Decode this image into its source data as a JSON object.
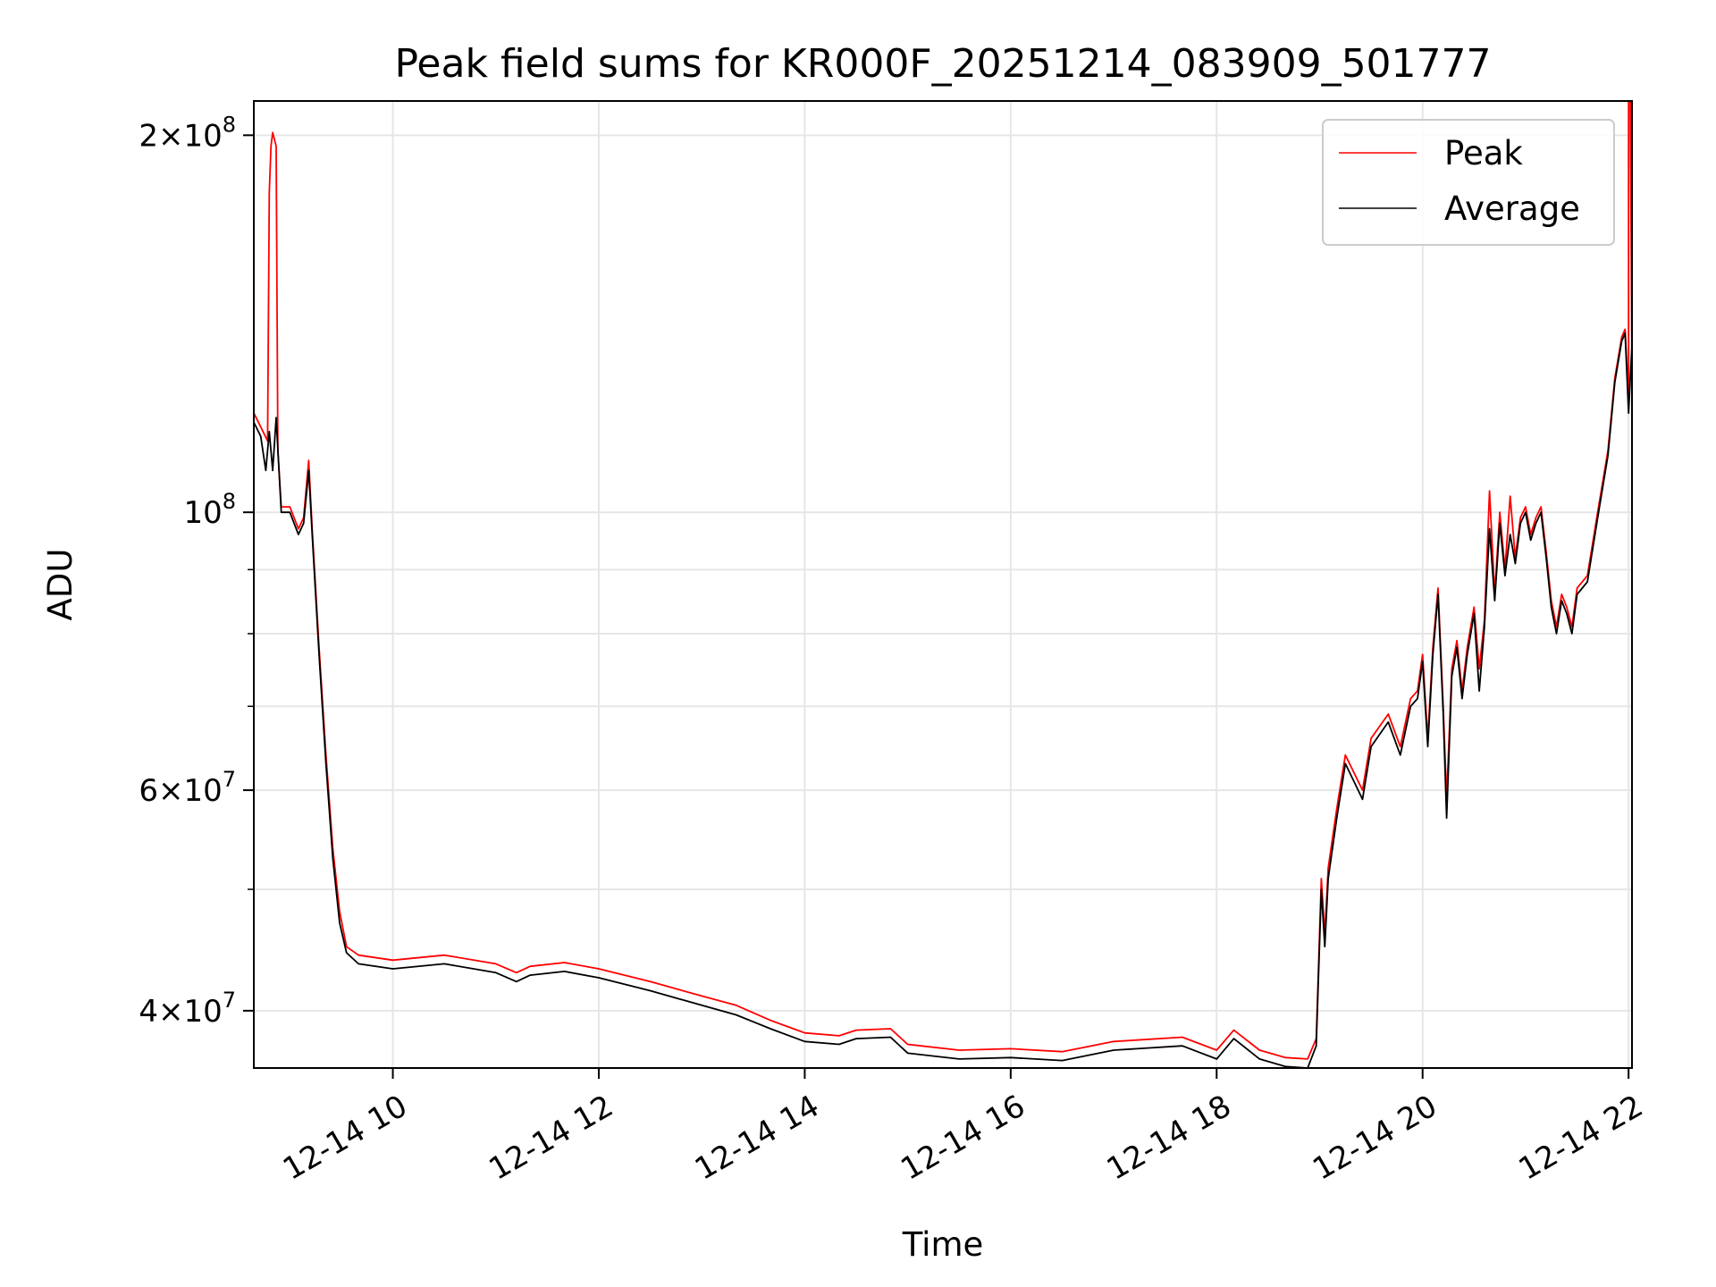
{
  "chart_data": {
    "type": "line",
    "title": "Peak field sums for KR000F_20251214_083909_501777",
    "xlabel": "Time",
    "ylabel": "ADU",
    "yscale": "log",
    "grid": true,
    "legend_position": "top-right",
    "xlim": [
      "2025-12-14 08:39",
      "2025-12-14 22:02"
    ],
    "ylim": [
      36000000,
      213000000
    ],
    "x_ticks": [
      {
        "value": "2025-12-14 10:00",
        "label": "12-14 10"
      },
      {
        "value": "2025-12-14 12:00",
        "label": "12-14 12"
      },
      {
        "value": "2025-12-14 14:00",
        "label": "12-14 14"
      },
      {
        "value": "2025-12-14 16:00",
        "label": "12-14 16"
      },
      {
        "value": "2025-12-14 18:00",
        "label": "12-14 18"
      },
      {
        "value": "2025-12-14 20:00",
        "label": "12-14 20"
      },
      {
        "value": "2025-12-14 22:00",
        "label": "12-14 22"
      }
    ],
    "y_major_ticks": [
      {
        "value": 40000000,
        "mantissa": "4",
        "base": "10",
        "exp": "7"
      },
      {
        "value": 60000000,
        "mantissa": "6",
        "base": "10",
        "exp": "7"
      },
      {
        "value": 100000000,
        "mantissa": "",
        "base": "10",
        "exp": "8"
      },
      {
        "value": 200000000,
        "mantissa": "2",
        "base": "10",
        "exp": "8"
      }
    ],
    "y_minor_ticks": [
      50000000,
      70000000,
      80000000,
      90000000
    ],
    "series": [
      {
        "name": "Peak",
        "color": "#ff0000",
        "points": [
          [
            "2025-12-14 08:39",
            120000000
          ],
          [
            "2025-12-14 08:43",
            117000000
          ],
          [
            "2025-12-14 08:47",
            114000000
          ],
          [
            "2025-12-14 08:48",
            180000000
          ],
          [
            "2025-12-14 08:49",
            196000000
          ],
          [
            "2025-12-14 08:50",
            201000000
          ],
          [
            "2025-12-14 08:52",
            196000000
          ],
          [
            "2025-12-14 08:53",
            112000000
          ],
          [
            "2025-12-14 08:55",
            101000000
          ],
          [
            "2025-12-14 09:00",
            101000000
          ],
          [
            "2025-12-14 09:05",
            97000000
          ],
          [
            "2025-12-14 09:08",
            99000000
          ],
          [
            "2025-12-14 09:11",
            110000000
          ],
          [
            "2025-12-14 09:13",
            97000000
          ],
          [
            "2025-12-14 09:17",
            78000000
          ],
          [
            "2025-12-14 09:21",
            64000000
          ],
          [
            "2025-12-14 09:25",
            54000000
          ],
          [
            "2025-12-14 09:29",
            48000000
          ],
          [
            "2025-12-14 09:33",
            45000000
          ],
          [
            "2025-12-14 09:40",
            44300000
          ],
          [
            "2025-12-14 10:00",
            43900000
          ],
          [
            "2025-12-14 10:30",
            44300000
          ],
          [
            "2025-12-14 11:00",
            43600000
          ],
          [
            "2025-12-14 11:12",
            42900000
          ],
          [
            "2025-12-14 11:20",
            43400000
          ],
          [
            "2025-12-14 11:40",
            43700000
          ],
          [
            "2025-12-14 12:00",
            43200000
          ],
          [
            "2025-12-14 12:30",
            42200000
          ],
          [
            "2025-12-14 13:00",
            41100000
          ],
          [
            "2025-12-14 13:20",
            40400000
          ],
          [
            "2025-12-14 13:40",
            39300000
          ],
          [
            "2025-12-14 14:00",
            38400000
          ],
          [
            "2025-12-14 14:20",
            38200000
          ],
          [
            "2025-12-14 14:30",
            38600000
          ],
          [
            "2025-12-14 14:50",
            38700000
          ],
          [
            "2025-12-14 15:00",
            37600000
          ],
          [
            "2025-12-14 15:30",
            37200000
          ],
          [
            "2025-12-14 16:00",
            37300000
          ],
          [
            "2025-12-14 16:30",
            37100000
          ],
          [
            "2025-12-14 17:00",
            37800000
          ],
          [
            "2025-12-14 17:40",
            38100000
          ],
          [
            "2025-12-14 18:00",
            37200000
          ],
          [
            "2025-12-14 18:10",
            38600000
          ],
          [
            "2025-12-14 18:25",
            37200000
          ],
          [
            "2025-12-14 18:40",
            36700000
          ],
          [
            "2025-12-14 18:53",
            36600000
          ],
          [
            "2025-12-14 18:58",
            38000000
          ],
          [
            "2025-12-14 19:01",
            51000000
          ],
          [
            "2025-12-14 19:03",
            46000000
          ],
          [
            "2025-12-14 19:05",
            52000000
          ],
          [
            "2025-12-14 19:10",
            58000000
          ],
          [
            "2025-12-14 19:15",
            64000000
          ],
          [
            "2025-12-14 19:25",
            60000000
          ],
          [
            "2025-12-14 19:30",
            66000000
          ],
          [
            "2025-12-14 19:40",
            69000000
          ],
          [
            "2025-12-14 19:47",
            65000000
          ],
          [
            "2025-12-14 19:53",
            71000000
          ],
          [
            "2025-12-14 19:57",
            72000000
          ],
          [
            "2025-12-14 20:00",
            77000000
          ],
          [
            "2025-12-14 20:03",
            66000000
          ],
          [
            "2025-12-14 20:06",
            78000000
          ],
          [
            "2025-12-14 20:09",
            87000000
          ],
          [
            "2025-12-14 20:12",
            70000000
          ],
          [
            "2025-12-14 20:14",
            59000000
          ],
          [
            "2025-12-14 20:17",
            75000000
          ],
          [
            "2025-12-14 20:20",
            79000000
          ],
          [
            "2025-12-14 20:23",
            72000000
          ],
          [
            "2025-12-14 20:26",
            78000000
          ],
          [
            "2025-12-14 20:30",
            84000000
          ],
          [
            "2025-12-14 20:33",
            75000000
          ],
          [
            "2025-12-14 20:36",
            82000000
          ],
          [
            "2025-12-14 20:39",
            104000000
          ],
          [
            "2025-12-14 20:42",
            86000000
          ],
          [
            "2025-12-14 20:45",
            100000000
          ],
          [
            "2025-12-14 20:48",
            90000000
          ],
          [
            "2025-12-14 20:51",
            103000000
          ],
          [
            "2025-12-14 20:54",
            92000000
          ],
          [
            "2025-12-14 20:57",
            99000000
          ],
          [
            "2025-12-14 21:00",
            101000000
          ],
          [
            "2025-12-14 21:03",
            96000000
          ],
          [
            "2025-12-14 21:06",
            99000000
          ],
          [
            "2025-12-14 21:09",
            101000000
          ],
          [
            "2025-12-14 21:12",
            93000000
          ],
          [
            "2025-12-14 21:15",
            85000000
          ],
          [
            "2025-12-14 21:18",
            81000000
          ],
          [
            "2025-12-14 21:21",
            86000000
          ],
          [
            "2025-12-14 21:24",
            84000000
          ],
          [
            "2025-12-14 21:27",
            81000000
          ],
          [
            "2025-12-14 21:30",
            87000000
          ],
          [
            "2025-12-14 21:36",
            89000000
          ],
          [
            "2025-12-14 21:42",
            100000000
          ],
          [
            "2025-12-14 21:48",
            112000000
          ],
          [
            "2025-12-14 21:52",
            128000000
          ],
          [
            "2025-12-14 21:56",
            138000000
          ],
          [
            "2025-12-14 21:58",
            140000000
          ],
          [
            "2025-12-14 22:00",
            123000000
          ],
          [
            "2025-12-14 22:00",
            213000000
          ],
          [
            "2025-12-14 22:01",
            213000000
          ],
          [
            "2025-12-14 22:02",
            130000000
          ]
        ]
      },
      {
        "name": "Average",
        "color": "#000000",
        "points": [
          [
            "2025-12-14 08:39",
            118000000
          ],
          [
            "2025-12-14 08:43",
            115000000
          ],
          [
            "2025-12-14 08:46",
            108000000
          ],
          [
            "2025-12-14 08:48",
            116000000
          ],
          [
            "2025-12-14 08:50",
            108000000
          ],
          [
            "2025-12-14 08:52",
            119000000
          ],
          [
            "2025-12-14 08:55",
            100000000
          ],
          [
            "2025-12-14 09:00",
            100000000
          ],
          [
            "2025-12-14 09:05",
            96000000
          ],
          [
            "2025-12-14 09:08",
            98000000
          ],
          [
            "2025-12-14 09:11",
            108000000
          ],
          [
            "2025-12-14 09:13",
            96000000
          ],
          [
            "2025-12-14 09:17",
            77000000
          ],
          [
            "2025-12-14 09:21",
            63000000
          ],
          [
            "2025-12-14 09:25",
            53000000
          ],
          [
            "2025-12-14 09:29",
            47000000
          ],
          [
            "2025-12-14 09:33",
            44500000
          ],
          [
            "2025-12-14 09:40",
            43600000
          ],
          [
            "2025-12-14 10:00",
            43200000
          ],
          [
            "2025-12-14 10:30",
            43600000
          ],
          [
            "2025-12-14 11:00",
            42900000
          ],
          [
            "2025-12-14 11:12",
            42200000
          ],
          [
            "2025-12-14 11:20",
            42700000
          ],
          [
            "2025-12-14 11:40",
            43000000
          ],
          [
            "2025-12-14 12:00",
            42500000
          ],
          [
            "2025-12-14 12:30",
            41500000
          ],
          [
            "2025-12-14 13:00",
            40400000
          ],
          [
            "2025-12-14 13:20",
            39700000
          ],
          [
            "2025-12-14 13:40",
            38700000
          ],
          [
            "2025-12-14 14:00",
            37800000
          ],
          [
            "2025-12-14 14:20",
            37600000
          ],
          [
            "2025-12-14 14:30",
            38000000
          ],
          [
            "2025-12-14 14:50",
            38100000
          ],
          [
            "2025-12-14 15:00",
            37000000
          ],
          [
            "2025-12-14 15:30",
            36600000
          ],
          [
            "2025-12-14 16:00",
            36700000
          ],
          [
            "2025-12-14 16:30",
            36500000
          ],
          [
            "2025-12-14 17:00",
            37200000
          ],
          [
            "2025-12-14 17:40",
            37500000
          ],
          [
            "2025-12-14 18:00",
            36600000
          ],
          [
            "2025-12-14 18:10",
            38000000
          ],
          [
            "2025-12-14 18:25",
            36600000
          ],
          [
            "2025-12-14 18:40",
            36100000
          ],
          [
            "2025-12-14 18:53",
            36000000
          ],
          [
            "2025-12-14 18:58",
            37500000
          ],
          [
            "2025-12-14 19:01",
            50000000
          ],
          [
            "2025-12-14 19:03",
            45000000
          ],
          [
            "2025-12-14 19:05",
            51000000
          ],
          [
            "2025-12-14 19:10",
            57000000
          ],
          [
            "2025-12-14 19:15",
            63000000
          ],
          [
            "2025-12-14 19:25",
            59000000
          ],
          [
            "2025-12-14 19:30",
            65000000
          ],
          [
            "2025-12-14 19:40",
            68000000
          ],
          [
            "2025-12-14 19:47",
            64000000
          ],
          [
            "2025-12-14 19:53",
            70000000
          ],
          [
            "2025-12-14 19:57",
            71000000
          ],
          [
            "2025-12-14 20:00",
            76000000
          ],
          [
            "2025-12-14 20:03",
            65000000
          ],
          [
            "2025-12-14 20:06",
            77000000
          ],
          [
            "2025-12-14 20:09",
            86000000
          ],
          [
            "2025-12-14 20:12",
            69000000
          ],
          [
            "2025-12-14 20:14",
            57000000
          ],
          [
            "2025-12-14 20:17",
            74000000
          ],
          [
            "2025-12-14 20:20",
            78000000
          ],
          [
            "2025-12-14 20:23",
            71000000
          ],
          [
            "2025-12-14 20:26",
            77000000
          ],
          [
            "2025-12-14 20:30",
            83000000
          ],
          [
            "2025-12-14 20:33",
            72000000
          ],
          [
            "2025-12-14 20:36",
            81000000
          ],
          [
            "2025-12-14 20:39",
            97000000
          ],
          [
            "2025-12-14 20:42",
            85000000
          ],
          [
            "2025-12-14 20:45",
            98000000
          ],
          [
            "2025-12-14 20:48",
            89000000
          ],
          [
            "2025-12-14 20:51",
            96000000
          ],
          [
            "2025-12-14 20:54",
            91000000
          ],
          [
            "2025-12-14 20:57",
            98000000
          ],
          [
            "2025-12-14 21:00",
            100000000
          ],
          [
            "2025-12-14 21:03",
            95000000
          ],
          [
            "2025-12-14 21:06",
            98000000
          ],
          [
            "2025-12-14 21:09",
            100000000
          ],
          [
            "2025-12-14 21:12",
            92000000
          ],
          [
            "2025-12-14 21:15",
            84000000
          ],
          [
            "2025-12-14 21:18",
            80000000
          ],
          [
            "2025-12-14 21:21",
            85000000
          ],
          [
            "2025-12-14 21:24",
            83000000
          ],
          [
            "2025-12-14 21:27",
            80000000
          ],
          [
            "2025-12-14 21:30",
            86000000
          ],
          [
            "2025-12-14 21:36",
            88000000
          ],
          [
            "2025-12-14 21:42",
            99000000
          ],
          [
            "2025-12-14 21:48",
            111000000
          ],
          [
            "2025-12-14 21:52",
            127000000
          ],
          [
            "2025-12-14 21:56",
            137000000
          ],
          [
            "2025-12-14 21:58",
            139000000
          ],
          [
            "2025-12-14 22:00",
            120000000
          ],
          [
            "2025-12-14 22:01",
            128000000
          ],
          [
            "2025-12-14 22:02",
            136000000
          ]
        ]
      }
    ]
  }
}
